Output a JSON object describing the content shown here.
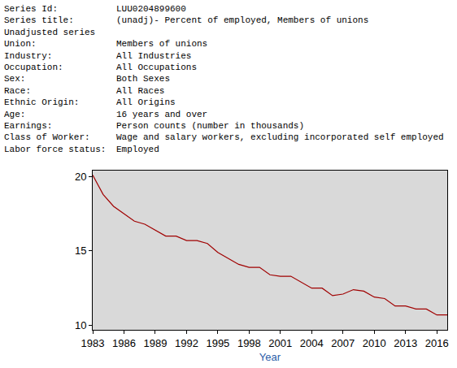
{
  "header": {
    "rows": [
      {
        "label": "Series Id:",
        "value": "LUU0204899600"
      },
      {
        "label": "Series title:",
        "value": "(unadj)- Percent of employed, Members of unions"
      },
      {
        "text": "Unadjusted series"
      },
      {
        "label": "Union:",
        "value": "Members of unions"
      },
      {
        "label": "Industry:",
        "value": "All Industries"
      },
      {
        "label": "Occupation:",
        "value": "All Occupations"
      },
      {
        "label": "Sex:",
        "value": "Both Sexes"
      },
      {
        "label": "Race:",
        "value": "All Races"
      },
      {
        "label": "Ethnic Origin:",
        "value": "All Origins"
      },
      {
        "label": "Age:",
        "value": "16 years and over"
      },
      {
        "label": "Earnings:",
        "value": "Person counts (number in thousands)"
      },
      {
        "label": "Class of Worker:",
        "value": "Wage and salary workers, excluding incorporated self employed"
      },
      {
        "label": "Labor force status:",
        "value": "Employed"
      }
    ]
  },
  "chart_data": {
    "type": "line",
    "x": [
      1983,
      1984,
      1985,
      1986,
      1987,
      1988,
      1989,
      1990,
      1991,
      1992,
      1993,
      1994,
      1995,
      1996,
      1997,
      1998,
      1999,
      2000,
      2001,
      2002,
      2003,
      2004,
      2005,
      2006,
      2007,
      2008,
      2009,
      2010,
      2011,
      2012,
      2013,
      2014,
      2015,
      2016,
      2017
    ],
    "values": [
      20.1,
      18.8,
      18.0,
      17.5,
      17.0,
      16.8,
      16.4,
      16.0,
      16.0,
      15.7,
      15.7,
      15.5,
      14.9,
      14.5,
      14.1,
      13.9,
      13.9,
      13.4,
      13.3,
      13.3,
      12.9,
      12.5,
      12.5,
      12.0,
      12.1,
      12.4,
      12.3,
      11.9,
      11.8,
      11.3,
      11.3,
      11.1,
      11.1,
      10.7,
      10.7
    ],
    "color": "#a00000",
    "x_label": "Year",
    "xlim": [
      1983,
      2017
    ],
    "xticks": [
      1983,
      1986,
      1989,
      1992,
      1995,
      1998,
      2001,
      2004,
      2007,
      2010,
      2013,
      2016
    ],
    "ylim": [
      9.7,
      20.4
    ],
    "yticks": [
      10,
      15,
      20
    ],
    "grid": false
  }
}
